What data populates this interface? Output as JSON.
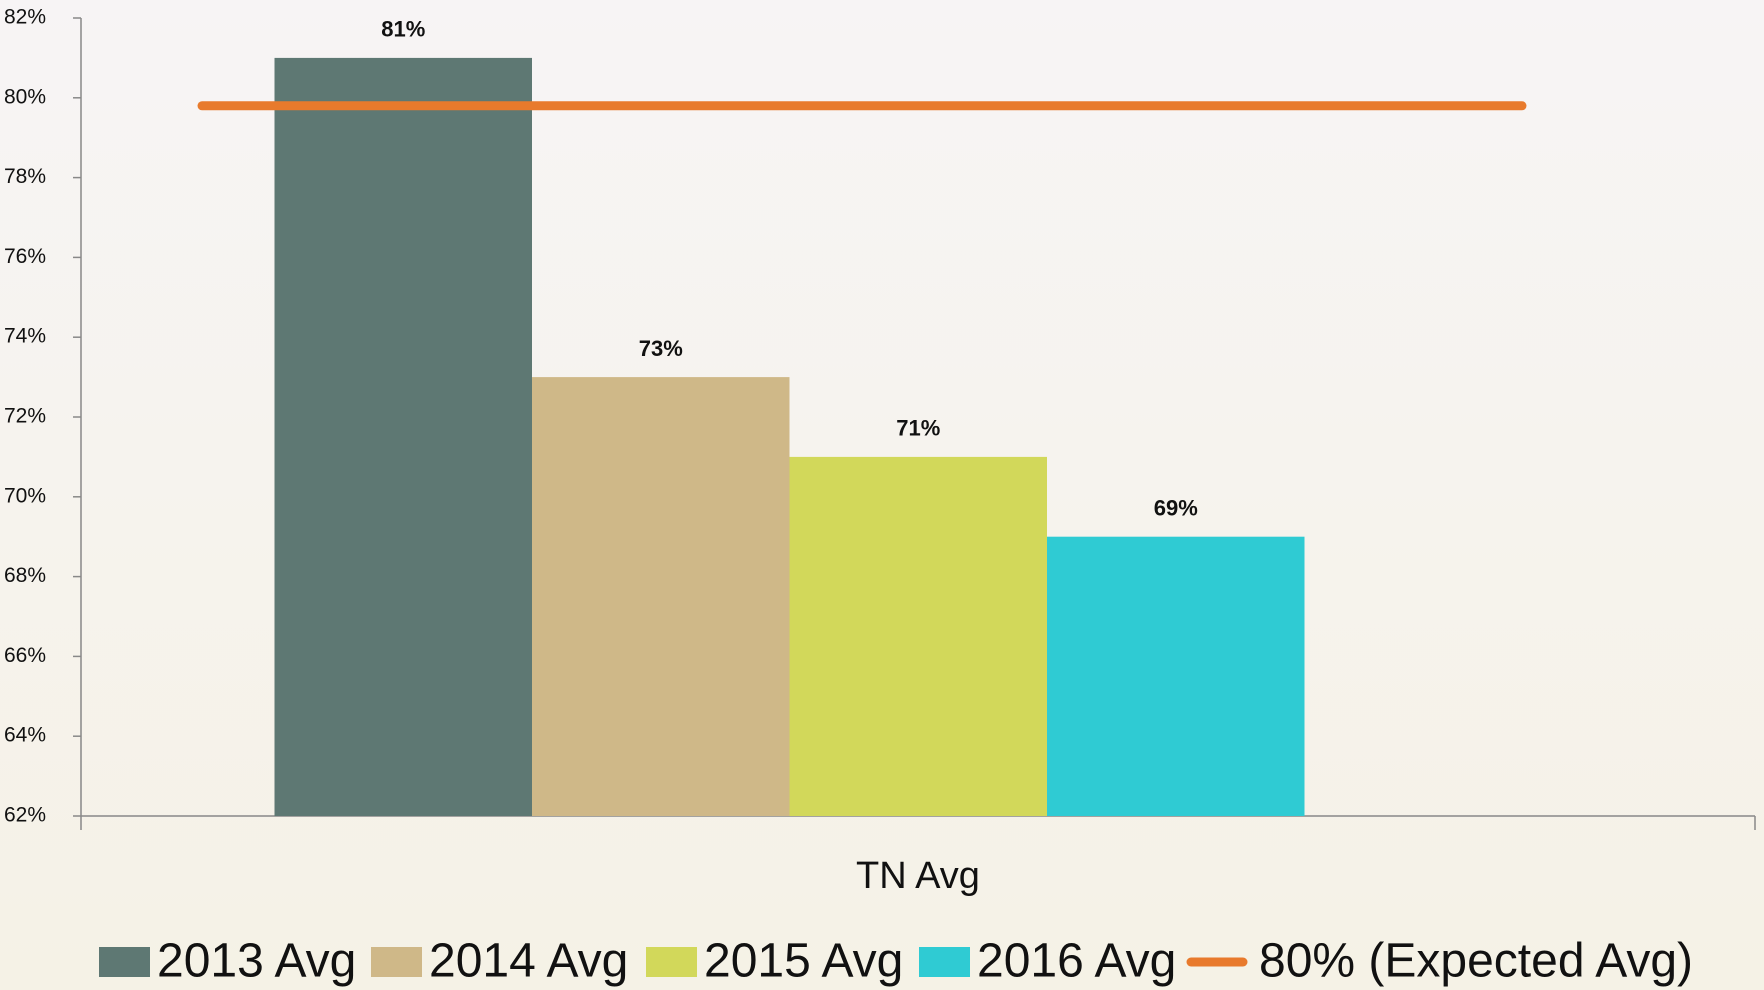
{
  "chart_data": {
    "type": "bar",
    "categories": [
      "TN Avg"
    ],
    "series": [
      {
        "name": "2013 Avg",
        "color": "#5e7873",
        "values": [
          81
        ],
        "value_labels": [
          "81%"
        ]
      },
      {
        "name": "2014 Avg",
        "color": "#cfb888",
        "values": [
          73
        ],
        "value_labels": [
          "73%"
        ]
      },
      {
        "name": "2015 Avg",
        "color": "#d2d85a",
        "values": [
          71
        ],
        "value_labels": [
          "71%"
        ]
      },
      {
        "name": "2016 Avg",
        "color": "#2fcbd3",
        "values": [
          69
        ],
        "value_labels": [
          "69%"
        ]
      },
      {
        "name": "80% (Expected Avg)",
        "type": "line",
        "color": "#e87a2c",
        "values": [
          79.8
        ]
      }
    ],
    "ylim": [
      62,
      82
    ],
    "yticks": [
      {
        "value": 62,
        "label": "62%"
      },
      {
        "value": 64,
        "label": "64%"
      },
      {
        "value": 66,
        "label": "66%"
      },
      {
        "value": 68,
        "label": "68%"
      },
      {
        "value": 70,
        "label": "70%"
      },
      {
        "value": 72,
        "label": "72%"
      },
      {
        "value": 74,
        "label": "74%"
      },
      {
        "value": 76,
        "label": "76%"
      },
      {
        "value": 78,
        "label": "78%"
      },
      {
        "value": 80,
        "label": "80%"
      },
      {
        "value": 82,
        "label": "82%"
      }
    ],
    "legend": "bottom"
  }
}
